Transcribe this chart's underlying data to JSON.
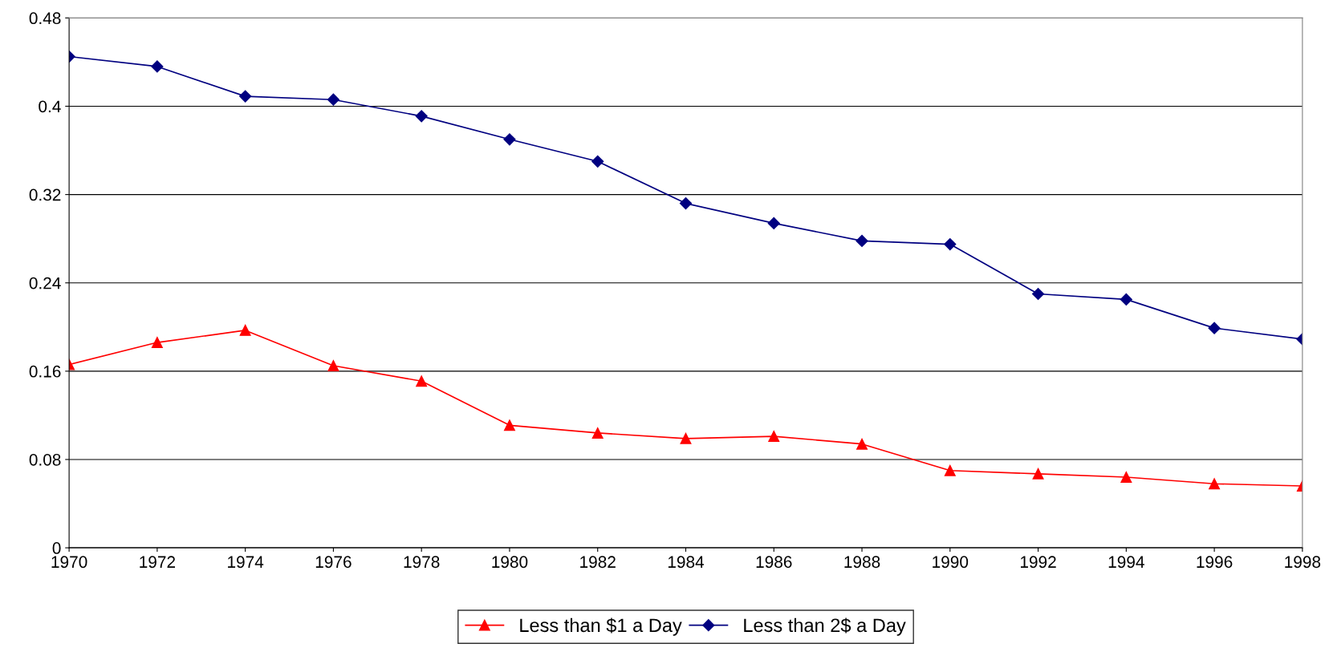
{
  "chart_data": {
    "type": "line",
    "x": [
      1970,
      1972,
      1974,
      1976,
      1978,
      1980,
      1982,
      1984,
      1986,
      1988,
      1990,
      1992,
      1994,
      1996,
      1998
    ],
    "series": [
      {
        "name": "Less than $1 a Day",
        "color": "#ff0000",
        "marker": "triangle",
        "values": [
          0.166,
          0.186,
          0.197,
          0.165,
          0.151,
          0.111,
          0.104,
          0.099,
          0.101,
          0.094,
          0.07,
          0.067,
          0.064,
          0.058,
          0.056
        ]
      },
      {
        "name": "Less than 2$ a Day",
        "color": "#000080",
        "marker": "diamond",
        "values": [
          0.445,
          0.436,
          0.409,
          0.406,
          0.391,
          0.37,
          0.35,
          0.312,
          0.294,
          0.278,
          0.275,
          0.23,
          0.225,
          0.199,
          0.189
        ]
      }
    ],
    "xlim": [
      1970,
      1998
    ],
    "xticks": [
      1970,
      1972,
      1974,
      1976,
      1978,
      1980,
      1982,
      1984,
      1986,
      1988,
      1990,
      1992,
      1994,
      1996,
      1998
    ],
    "ylim": [
      0,
      0.48
    ],
    "yticks": [
      0,
      0.08,
      0.16,
      0.24,
      0.32,
      0.4,
      0.48
    ],
    "grid": "y",
    "legend": "bottom"
  }
}
